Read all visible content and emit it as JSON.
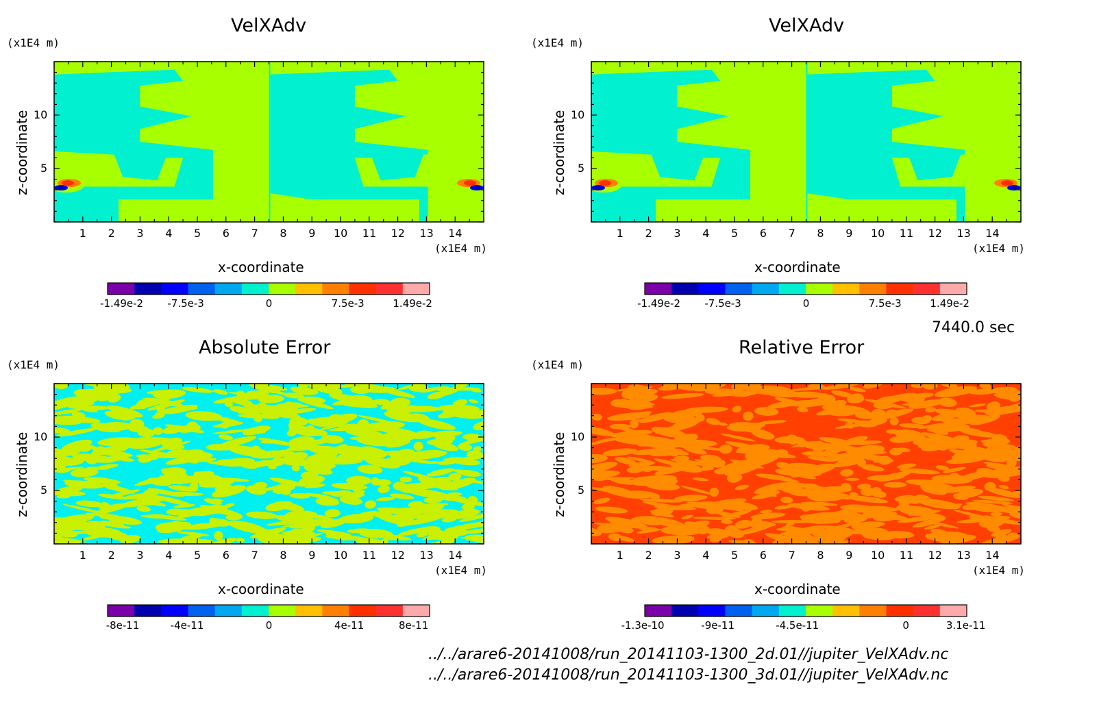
{
  "time_label": "7440.0 sec",
  "footer": {
    "file_2d": "../../arare6-20141008/run_20141103-1300_2d.01//jupiter_VelXAdv.nc",
    "file_3d": "../../arare6-20141008/run_20141103-1300_3d.01//jupiter_VelXAdv.nc"
  },
  "colors": {
    "palette": [
      "#7a00aa",
      "#0000b0",
      "#0000ff",
      "#0060f0",
      "#00a8f0",
      "#00f0d0",
      "#a8ff00",
      "#ffc000",
      "#ff8000",
      "#ff3000",
      "#ff3030",
      "#ffaaaa"
    ]
  },
  "chart_data": [
    {
      "type": "heatmap",
      "title": "VelXAdv",
      "xlabel": "x-coordinate",
      "ylabel": "z-coordinate",
      "x_unit": "(x1E4 m)",
      "y_unit": "(x1E4 m)",
      "xlim": [
        0,
        15
      ],
      "ylim": [
        0,
        15
      ],
      "x_ticks": [
        "1",
        "2",
        "3",
        "4",
        "5",
        "6",
        "7",
        "8",
        "9",
        "10",
        "11",
        "12",
        "13",
        "14"
      ],
      "y_ticks": [
        "5",
        "10"
      ],
      "colorbar": {
        "min": -0.0149,
        "max": 0.0149,
        "labels": [
          "-1.49e-2",
          "-7.5e-3",
          "0",
          "7.5e-3",
          "1.49e-2"
        ]
      },
      "background_color": "#00f0d0",
      "pattern_color": "#a8ff00"
    },
    {
      "type": "heatmap",
      "title": "VelXAdv",
      "xlabel": "x-coordinate",
      "ylabel": "z-coordinate",
      "x_unit": "(x1E4 m)",
      "y_unit": "(x1E4 m)",
      "xlim": [
        0,
        15
      ],
      "ylim": [
        0,
        15
      ],
      "x_ticks": [
        "1",
        "2",
        "3",
        "4",
        "5",
        "6",
        "7",
        "8",
        "9",
        "10",
        "11",
        "12",
        "13",
        "14"
      ],
      "y_ticks": [
        "5",
        "10"
      ],
      "colorbar": {
        "min": -0.0149,
        "max": 0.0149,
        "labels": [
          "-1.49e-2",
          "-7.5e-3",
          "0",
          "7.5e-3",
          "1.49e-2"
        ]
      },
      "background_color": "#00f0d0",
      "pattern_color": "#a8ff00"
    },
    {
      "type": "heatmap",
      "title": "Absolute Error",
      "xlabel": "x-coordinate",
      "ylabel": "z-coordinate",
      "x_unit": "(x1E4 m)",
      "y_unit": "(x1E4 m)",
      "xlim": [
        0,
        15
      ],
      "ylim": [
        0,
        15
      ],
      "x_ticks": [
        "1",
        "2",
        "3",
        "4",
        "5",
        "6",
        "7",
        "8",
        "9",
        "10",
        "11",
        "12",
        "13",
        "14"
      ],
      "y_ticks": [
        "5",
        "10"
      ],
      "colorbar": {
        "labels": [
          "-8e-11",
          "-4e-11",
          "0",
          "4e-11",
          "8e-11"
        ]
      },
      "background_color": "#00f0f0",
      "pattern_color": "#c8f000"
    },
    {
      "type": "heatmap",
      "title": "Relative Error",
      "xlabel": "x-coordinate",
      "ylabel": "z-coordinate",
      "x_unit": "(x1E4 m)",
      "y_unit": "(x1E4 m)",
      "xlim": [
        0,
        15
      ],
      "ylim": [
        0,
        15
      ],
      "x_ticks": [
        "1",
        "2",
        "3",
        "4",
        "5",
        "6",
        "7",
        "8",
        "9",
        "10",
        "11",
        "12",
        "13",
        "14"
      ],
      "y_ticks": [
        "5",
        "10"
      ],
      "colorbar": {
        "min": -1.3e-10,
        "max": 3.1e-11,
        "labels": [
          "-1.3e-10",
          "-9e-11",
          "-4.5e-11",
          "0",
          "3.1e-11"
        ]
      },
      "background_color": "#ff4000",
      "pattern_color": "#ff8c00"
    }
  ]
}
